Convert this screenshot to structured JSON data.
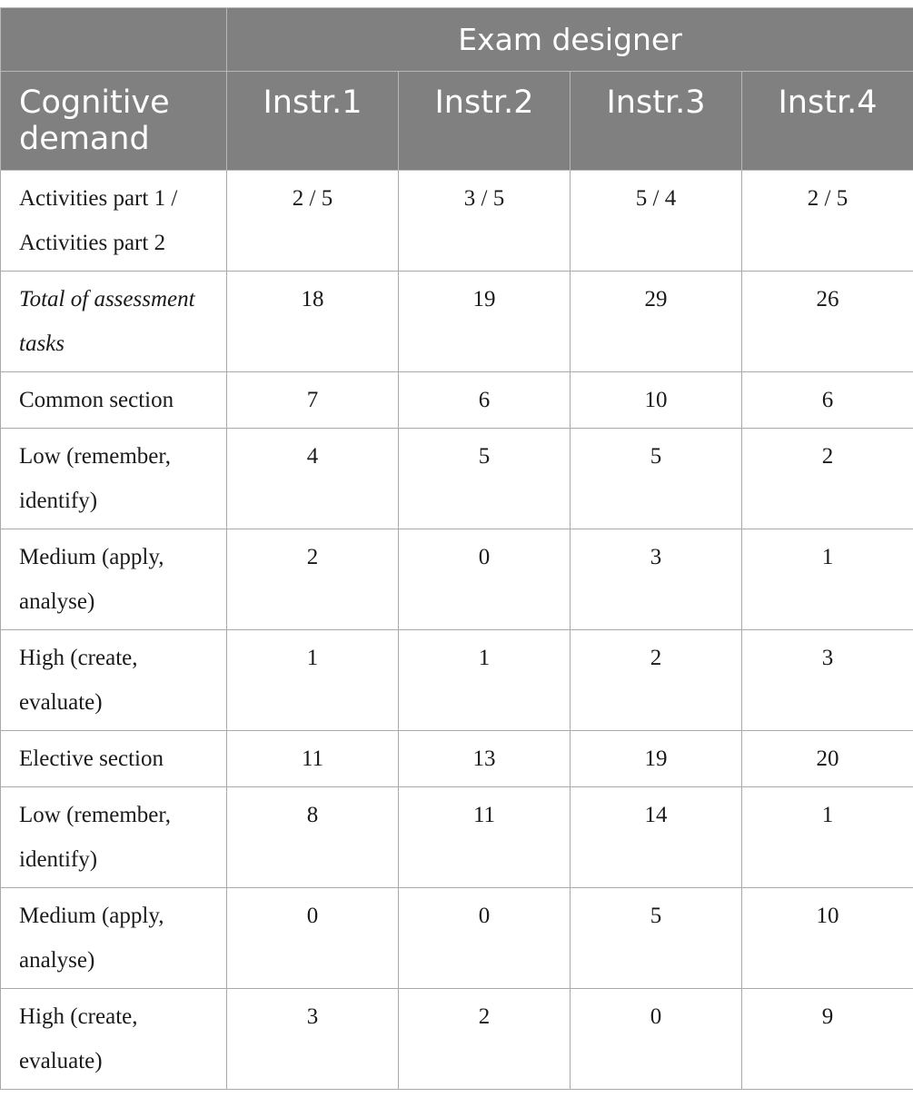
{
  "header": {
    "group_label": "Exam designer",
    "row_label": "Cognitive demand",
    "columns": [
      "Instr.1",
      "Instr.2",
      "Instr.3",
      "Instr.4"
    ]
  },
  "rows": [
    {
      "label": "Activities part 1 / Activities part 2",
      "values": [
        "2 / 5",
        "3 / 5",
        "5 / 4",
        "2 / 5"
      ],
      "italic": false,
      "tall": true
    },
    {
      "label": "Total of assessment tasks",
      "values": [
        "18",
        "19",
        "29",
        "26"
      ],
      "italic": true,
      "tall": true
    },
    {
      "label": "Common section",
      "values": [
        "7",
        "6",
        "10",
        "6"
      ],
      "italic": false,
      "tall": false
    },
    {
      "label": "Low (remember, identify)",
      "values": [
        "4",
        "5",
        "5",
        "2"
      ],
      "italic": false,
      "tall": true
    },
    {
      "label": "Medium (apply, analyse)",
      "values": [
        "2",
        "0",
        "3",
        "1"
      ],
      "italic": false,
      "tall": true
    },
    {
      "label": "High (create, evaluate)",
      "values": [
        "1",
        "1",
        "2",
        "3"
      ],
      "italic": false,
      "tall": true
    },
    {
      "label": "Elective section",
      "values": [
        "11",
        "13",
        "19",
        "20"
      ],
      "italic": false,
      "tall": false
    },
    {
      "label": "Low (remember, identify)",
      "values": [
        "8",
        "11",
        "14",
        "1"
      ],
      "italic": false,
      "tall": true
    },
    {
      "label": "Medium (apply, analyse)",
      "values": [
        "0",
        "0",
        "5",
        "10"
      ],
      "italic": false,
      "tall": true
    },
    {
      "label": "High (create, evaluate)",
      "values": [
        "3",
        "2",
        "0",
        "9"
      ],
      "italic": false,
      "tall": true
    }
  ]
}
